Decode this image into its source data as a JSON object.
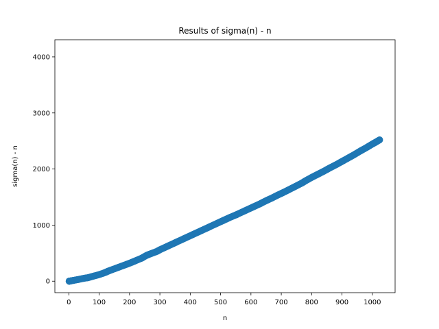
{
  "chart_data": {
    "type": "scatter",
    "title": "Results of sigma(n) - n",
    "xlabel": "n",
    "ylabel": "sigma(n) - n",
    "xlim": [
      -46,
      1075
    ],
    "ylim": [
      -205,
      4305
    ],
    "xticks": [
      0,
      100,
      200,
      300,
      400,
      500,
      600,
      700,
      800,
      900,
      1000
    ],
    "yticks": [
      0,
      1000,
      2000,
      3000,
      4000
    ],
    "grid": false,
    "legend": "none",
    "series": [
      {
        "color": "#1f77b4",
        "x": [
          1,
          2,
          4,
          8,
          16,
          32,
          50,
          64,
          80,
          100,
          120,
          128,
          140,
          160,
          180,
          200,
          220,
          240,
          256,
          270,
          290,
          300,
          320,
          340,
          360,
          380,
          400,
          420,
          440,
          460,
          480,
          500,
          512,
          530,
          550,
          570,
          590,
          610,
          630,
          650,
          670,
          690,
          710,
          730,
          750,
          768,
          780,
          800,
          820,
          840,
          860,
          880,
          900,
          920,
          940,
          960,
          980,
          1000,
          1010,
          1024
        ],
        "y": [
          0,
          1,
          3,
          7,
          15,
          31,
          52,
          63,
          88,
          117,
          155,
          175,
          200,
          240,
          280,
          320,
          365,
          410,
          460,
          490,
          530,
          560,
          610,
          660,
          710,
          760,
          810,
          860,
          910,
          960,
          1010,
          1060,
          1090,
          1135,
          1180,
          1230,
          1280,
          1330,
          1380,
          1435,
          1485,
          1540,
          1590,
          1645,
          1700,
          1750,
          1790,
          1850,
          1905,
          1960,
          2020,
          2075,
          2135,
          2195,
          2255,
          2320,
          2380,
          2445,
          2475,
          2520
        ]
      }
    ]
  }
}
